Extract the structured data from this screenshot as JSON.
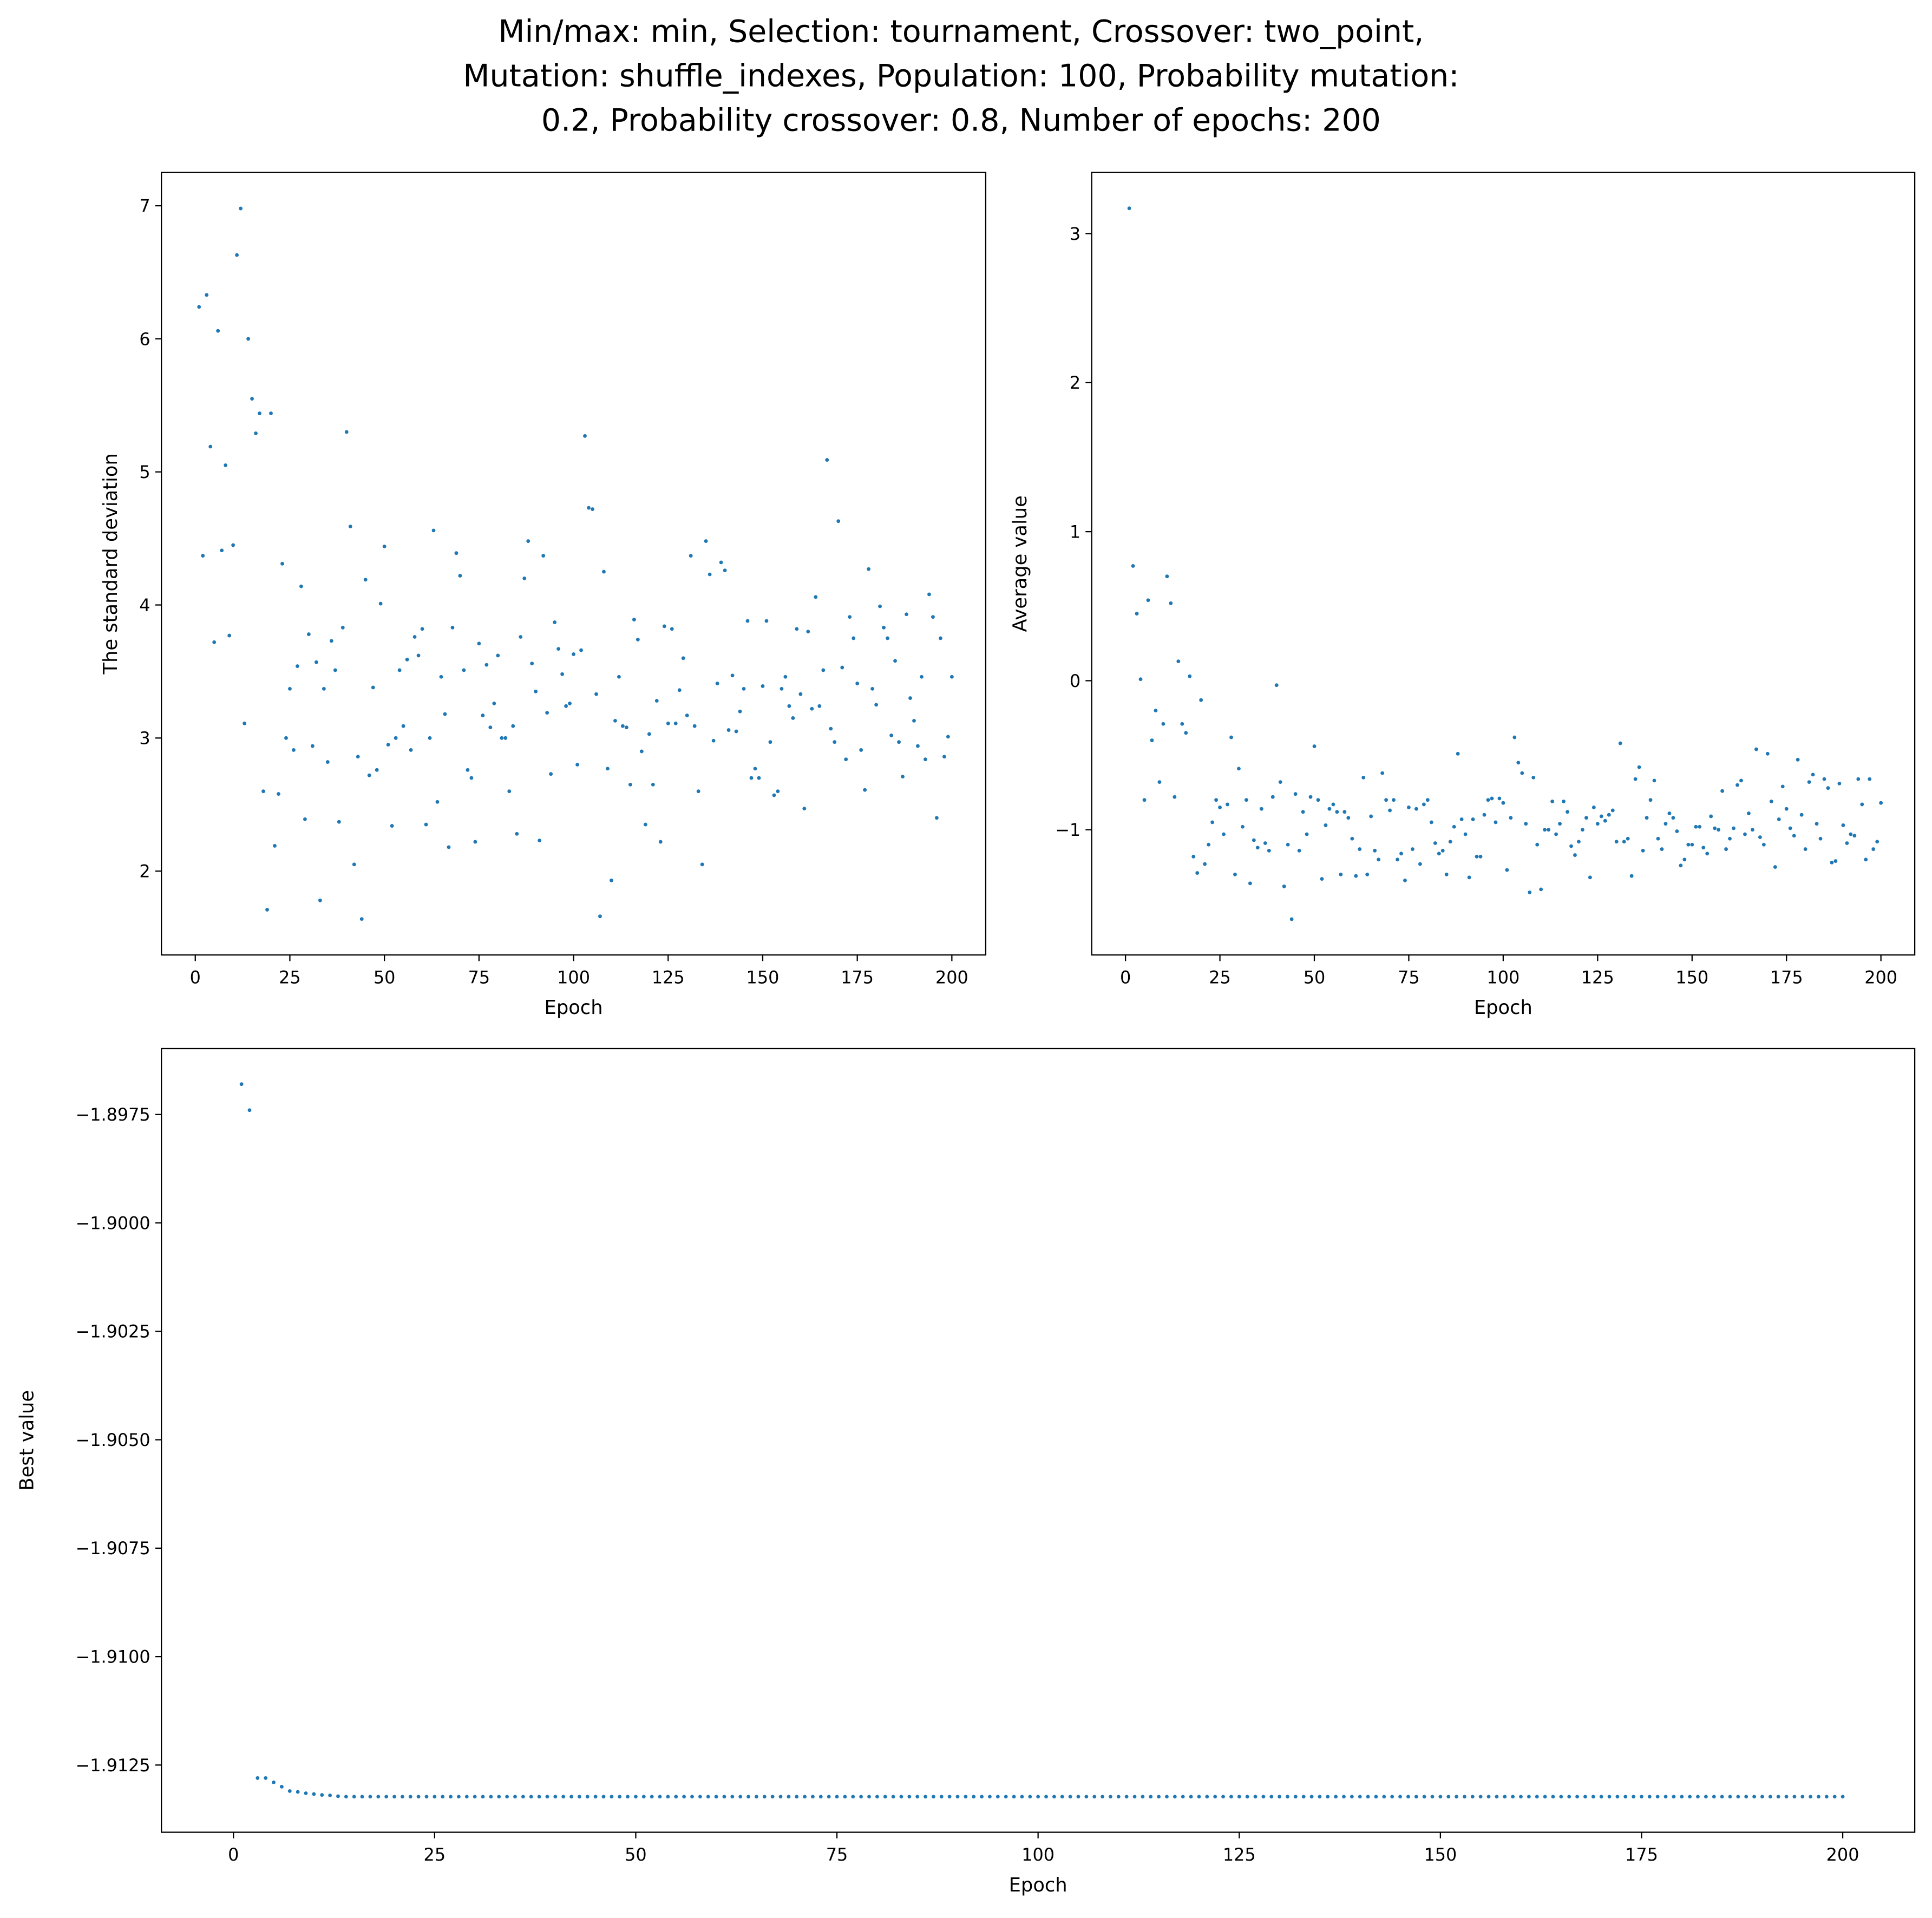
{
  "title": [
    "Min/max: min, Selection: tournament, Crossover: two_point,",
    "Mutation: shuffle_indexes, Population: 100, Probability mutation:",
    "0.2, Probability crossover: 0.8, Number of epochs: 200"
  ],
  "chart_data": [
    {
      "type": "scatter",
      "xlabel": "Epoch",
      "ylabel": "The standard deviation",
      "color": "#1f77b4",
      "xlim": [
        -8.95,
        208.95
      ],
      "ylim": [
        1.37,
        7.25
      ],
      "xticks": [
        0,
        25,
        50,
        75,
        100,
        125,
        150,
        175,
        200
      ],
      "yticks": [
        2,
        3,
        4,
        5,
        6,
        7
      ],
      "x": [
        1,
        2,
        3,
        4,
        5,
        6,
        7,
        8,
        9,
        10,
        11,
        12,
        13,
        14,
        15,
        16,
        17,
        18,
        19,
        20,
        21,
        22,
        23,
        24,
        25,
        26,
        27,
        28,
        29,
        30,
        31,
        32,
        33,
        34,
        35,
        36,
        37,
        38,
        39,
        40,
        41,
        42,
        43,
        44,
        45,
        46,
        47,
        48,
        49,
        50,
        51,
        52,
        53,
        54,
        55,
        56,
        57,
        58,
        59,
        60,
        61,
        62,
        63,
        64,
        65,
        66,
        67,
        68,
        69,
        70,
        71,
        72,
        73,
        74,
        75,
        76,
        77,
        78,
        79,
        80,
        81,
        82,
        83,
        84,
        85,
        86,
        87,
        88,
        89,
        90,
        91,
        92,
        93,
        94,
        95,
        96,
        97,
        98,
        99,
        100,
        101,
        102,
        103,
        104,
        105,
        106,
        107,
        108,
        109,
        110,
        111,
        112,
        113,
        114,
        115,
        116,
        117,
        118,
        119,
        120,
        121,
        122,
        123,
        124,
        125,
        126,
        127,
        128,
        129,
        130,
        131,
        132,
        133,
        134,
        135,
        136,
        137,
        138,
        139,
        140,
        141,
        142,
        143,
        144,
        145,
        146,
        147,
        148,
        149,
        150,
        151,
        152,
        153,
        154,
        155,
        156,
        157,
        158,
        159,
        160,
        161,
        162,
        163,
        164,
        165,
        166,
        167,
        168,
        169,
        170,
        171,
        172,
        173,
        174,
        175,
        176,
        177,
        178,
        179,
        180,
        181,
        182,
        183,
        184,
        185,
        186,
        187,
        188,
        189,
        190,
        191,
        192,
        193,
        194,
        195,
        196,
        197,
        198,
        199,
        200
      ],
      "values": [
        6.24,
        4.37,
        6.33,
        5.19,
        3.72,
        6.06,
        4.41,
        5.05,
        3.77,
        4.45,
        6.63,
        6.98,
        3.11,
        6.0,
        5.55,
        5.29,
        5.44,
        2.6,
        1.71,
        5.44,
        2.19,
        2.58,
        4.31,
        3.0,
        3.37,
        2.91,
        3.54,
        4.14,
        2.39,
        3.78,
        2.94,
        3.57,
        1.78,
        3.37,
        2.82,
        3.73,
        3.51,
        2.37,
        3.83,
        5.3,
        4.59,
        2.05,
        2.86,
        1.64,
        4.19,
        2.72,
        3.38,
        2.76,
        4.01,
        4.44,
        2.95,
        2.34,
        3.0,
        3.51,
        3.09,
        3.59,
        2.91,
        3.76,
        3.62,
        3.82,
        2.35,
        3.0,
        4.56,
        2.52,
        3.46,
        3.18,
        2.18,
        3.83,
        4.39,
        4.22,
        3.51,
        2.76,
        2.7,
        2.22,
        3.71,
        3.17,
        3.55,
        3.08,
        3.26,
        3.62,
        3.0,
        3.0,
        2.6,
        3.09,
        2.28,
        3.76,
        4.2,
        4.48,
        3.56,
        3.35,
        2.23,
        4.37,
        3.19,
        2.73,
        3.87,
        3.67,
        3.48,
        3.24,
        3.26,
        3.63,
        2.8,
        3.66,
        5.27,
        4.73,
        4.72,
        3.33,
        1.66,
        4.25,
        2.77,
        1.93,
        3.13,
        3.46,
        3.09,
        3.08,
        2.65,
        3.89,
        3.74,
        2.9,
        2.35,
        3.03,
        2.65,
        3.28,
        2.22,
        3.84,
        3.11,
        3.82,
        3.11,
        3.36,
        3.6,
        3.17,
        4.37,
        3.09,
        2.6,
        2.05,
        4.48,
        4.23,
        2.98,
        3.41,
        4.32,
        4.26,
        3.06,
        3.47,
        3.05,
        3.2,
        3.37,
        3.88,
        2.7,
        2.77,
        2.7,
        3.39,
        3.88,
        2.97,
        2.57,
        2.6,
        3.37,
        3.46,
        3.24,
        3.15,
        3.82,
        3.33,
        2.47,
        3.8,
        3.22,
        4.06,
        3.24,
        3.51,
        5.09,
        3.07,
        2.97,
        4.63,
        3.53,
        2.84,
        3.91,
        3.75,
        3.41,
        2.91,
        2.61,
        4.27,
        3.37,
        3.25,
        3.99,
        3.83,
        3.75,
        3.02,
        3.58,
        2.97,
        2.71,
        3.93,
        3.3,
        3.13,
        2.94,
        3.46,
        2.84,
        4.08,
        3.91,
        2.4,
        3.75,
        2.86,
        3.01,
        3.46
      ]
    },
    {
      "type": "scatter",
      "xlabel": "Epoch",
      "ylabel": "Average value",
      "color": "#1f77b4",
      "xlim": [
        -8.95,
        208.95
      ],
      "ylim": [
        -1.84,
        3.41
      ],
      "xticks": [
        0,
        25,
        50,
        75,
        100,
        125,
        150,
        175,
        200
      ],
      "yticks": [
        {
          "value": -1,
          "label": "−1"
        },
        0,
        1,
        2,
        3
      ],
      "x": [
        1,
        2,
        3,
        4,
        5,
        6,
        7,
        8,
        9,
        10,
        11,
        12,
        13,
        14,
        15,
        16,
        17,
        18,
        19,
        20,
        21,
        22,
        23,
        24,
        25,
        26,
        27,
        28,
        29,
        30,
        31,
        32,
        33,
        34,
        35,
        36,
        37,
        38,
        39,
        40,
        41,
        42,
        43,
        44,
        45,
        46,
        47,
        48,
        49,
        50,
        51,
        52,
        53,
        54,
        55,
        56,
        57,
        58,
        59,
        60,
        61,
        62,
        63,
        64,
        65,
        66,
        67,
        68,
        69,
        70,
        71,
        72,
        73,
        74,
        75,
        76,
        77,
        78,
        79,
        80,
        81,
        82,
        83,
        84,
        85,
        86,
        87,
        88,
        89,
        90,
        91,
        92,
        93,
        94,
        95,
        96,
        97,
        98,
        99,
        100,
        101,
        102,
        103,
        104,
        105,
        106,
        107,
        108,
        109,
        110,
        111,
        112,
        113,
        114,
        115,
        116,
        117,
        118,
        119,
        120,
        121,
        122,
        123,
        124,
        125,
        126,
        127,
        128,
        129,
        130,
        131,
        132,
        133,
        134,
        135,
        136,
        137,
        138,
        139,
        140,
        141,
        142,
        143,
        144,
        145,
        146,
        147,
        148,
        149,
        150,
        151,
        152,
        153,
        154,
        155,
        156,
        157,
        158,
        159,
        160,
        161,
        162,
        163,
        164,
        165,
        166,
        167,
        168,
        169,
        170,
        171,
        172,
        173,
        174,
        175,
        176,
        177,
        178,
        179,
        180,
        181,
        182,
        183,
        184,
        185,
        186,
        187,
        188,
        189,
        190,
        191,
        192,
        193,
        194,
        195,
        196,
        197,
        198,
        199,
        200
      ],
      "values": [
        3.17,
        0.77,
        0.45,
        0.01,
        -0.8,
        0.54,
        -0.4,
        -0.2,
        -0.68,
        -0.29,
        0.7,
        0.52,
        -0.78,
        0.13,
        -0.29,
        -0.35,
        0.03,
        -1.18,
        -1.29,
        -0.13,
        -1.23,
        -1.1,
        -0.95,
        -0.8,
        -0.85,
        -1.03,
        -0.83,
        -0.38,
        -1.3,
        -0.59,
        -0.98,
        -0.8,
        -1.36,
        -1.07,
        -1.12,
        -0.86,
        -1.09,
        -1.14,
        -0.78,
        -0.03,
        -0.68,
        -1.38,
        -1.1,
        -1.6,
        -0.76,
        -1.14,
        -0.88,
        -1.03,
        -0.78,
        -0.44,
        -0.8,
        -1.33,
        -0.97,
        -0.86,
        -0.83,
        -0.88,
        -1.3,
        -0.88,
        -0.92,
        -1.06,
        -1.31,
        -1.13,
        -0.65,
        -1.3,
        -0.91,
        -1.14,
        -1.2,
        -0.62,
        -0.8,
        -0.87,
        -0.8,
        -1.2,
        -1.16,
        -1.34,
        -0.85,
        -1.13,
        -0.86,
        -1.23,
        -0.83,
        -0.8,
        -0.95,
        -1.09,
        -1.16,
        -1.14,
        -1.3,
        -1.08,
        -0.98,
        -0.49,
        -0.93,
        -1.03,
        -1.32,
        -0.93,
        -1.18,
        -1.18,
        -0.9,
        -0.8,
        -0.79,
        -0.95,
        -0.79,
        -0.82,
        -1.27,
        -0.92,
        -0.38,
        -0.55,
        -0.62,
        -0.96,
        -1.42,
        -0.65,
        -1.1,
        -1.4,
        -1.0,
        -1.0,
        -0.81,
        -1.03,
        -0.96,
        -0.81,
        -0.88,
        -1.11,
        -1.17,
        -1.08,
        -1.0,
        -0.92,
        -1.32,
        -0.85,
        -0.96,
        -0.91,
        -0.94,
        -0.9,
        -0.87,
        -1.08,
        -0.42,
        -1.08,
        -1.06,
        -1.31,
        -0.66,
        -0.58,
        -1.14,
        -0.92,
        -0.8,
        -0.67,
        -1.06,
        -1.13,
        -0.96,
        -0.89,
        -0.92,
        -1.01,
        -1.24,
        -1.2,
        -1.1,
        -1.1,
        -0.98,
        -0.98,
        -1.12,
        -1.16,
        -0.91,
        -0.99,
        -1.0,
        -0.74,
        -1.13,
        -1.06,
        -0.99,
        -0.7,
        -0.67,
        -1.03,
        -0.89,
        -1.0,
        -0.46,
        -1.05,
        -1.1,
        -0.49,
        -0.81,
        -1.25,
        -0.93,
        -0.71,
        -0.86,
        -0.99,
        -1.04,
        -0.53,
        -0.9,
        -1.13,
        -0.68,
        -0.63,
        -0.96,
        -1.06,
        -0.66,
        -0.72,
        -1.22,
        -1.21,
        -0.69,
        -0.97,
        -1.09,
        -1.03,
        -1.04,
        -0.66,
        -0.83,
        -1.2,
        -0.66,
        -1.13,
        -1.08,
        -0.82
      ]
    },
    {
      "type": "scatter",
      "xlabel": "Epoch",
      "ylabel": "Best value",
      "color": "#1f77b4",
      "xlim": [
        -8.95,
        208.95
      ],
      "ylim": [
        -1.91405,
        -1.89598
      ],
      "xticks": [
        0,
        25,
        50,
        75,
        100,
        125,
        150,
        175,
        200
      ],
      "yticks": [
        {
          "value": -1.9125,
          "label": "−1.9125"
        },
        {
          "value": -1.91,
          "label": "−1.9100"
        },
        {
          "value": -1.9075,
          "label": "−1.9075"
        },
        {
          "value": -1.905,
          "label": "−1.9050"
        },
        {
          "value": -1.9025,
          "label": "−1.9025"
        },
        {
          "value": -1.9,
          "label": "−1.9000"
        },
        {
          "value": -1.8975,
          "label": "−1.8975"
        }
      ],
      "x": [
        1,
        2,
        3,
        4,
        5,
        6,
        7,
        8,
        9,
        10,
        11,
        12,
        13,
        14,
        15,
        16,
        17,
        18,
        19,
        20,
        21,
        22,
        23,
        24,
        25,
        26,
        27,
        28,
        29,
        30,
        31,
        32,
        33,
        34,
        35,
        36,
        37,
        38,
        39,
        40,
        41,
        42,
        43,
        44,
        45,
        46,
        47,
        48,
        49,
        50,
        51,
        52,
        53,
        54,
        55,
        56,
        57,
        58,
        59,
        60,
        61,
        62,
        63,
        64,
        65,
        66,
        67,
        68,
        69,
        70,
        71,
        72,
        73,
        74,
        75,
        76,
        77,
        78,
        79,
        80,
        81,
        82,
        83,
        84,
        85,
        86,
        87,
        88,
        89,
        90,
        91,
        92,
        93,
        94,
        95,
        96,
        97,
        98,
        99,
        100,
        101,
        102,
        103,
        104,
        105,
        106,
        107,
        108,
        109,
        110,
        111,
        112,
        113,
        114,
        115,
        116,
        117,
        118,
        119,
        120,
        121,
        122,
        123,
        124,
        125,
        126,
        127,
        128,
        129,
        130,
        131,
        132,
        133,
        134,
        135,
        136,
        137,
        138,
        139,
        140,
        141,
        142,
        143,
        144,
        145,
        146,
        147,
        148,
        149,
        150,
        151,
        152,
        153,
        154,
        155,
        156,
        157,
        158,
        159,
        160,
        161,
        162,
        163,
        164,
        165,
        166,
        167,
        168,
        169,
        170,
        171,
        172,
        173,
        174,
        175,
        176,
        177,
        178,
        179,
        180,
        181,
        182,
        183,
        184,
        185,
        186,
        187,
        188,
        189,
        190,
        191,
        192,
        193,
        194,
        195,
        196,
        197,
        198,
        199,
        200
      ],
      "values": [
        -1.8968,
        -1.8974,
        -1.9128,
        -1.9128,
        -1.9129,
        -1.913,
        -1.9131,
        -1.91312,
        -1.91315,
        -1.91317,
        -1.91319,
        -1.9132,
        -1.91322,
        -1.91323,
        -1.91323,
        -1.91323,
        -1.91323,
        -1.91323,
        -1.91323,
        -1.91323,
        -1.91323,
        -1.91323,
        -1.91323,
        -1.91323,
        -1.91323,
        -1.91323,
        -1.91323,
        -1.91323,
        -1.91323,
        -1.91323,
        -1.91323,
        -1.91323,
        -1.91323,
        -1.91323,
        -1.91323,
        -1.91323,
        -1.91323,
        -1.91323,
        -1.91323,
        -1.91323,
        -1.91323,
        -1.91323,
        -1.91323,
        -1.91323,
        -1.91323,
        -1.91323,
        -1.91323,
        -1.91323,
        -1.91323,
        -1.91323,
        -1.91323,
        -1.91323,
        -1.91323,
        -1.91323,
        -1.91323,
        -1.91323,
        -1.91323,
        -1.91323,
        -1.91323,
        -1.91323,
        -1.91323,
        -1.91323,
        -1.91323,
        -1.91323,
        -1.91323,
        -1.91323,
        -1.91323,
        -1.91323,
        -1.91323,
        -1.91323,
        -1.91323,
        -1.91323,
        -1.91323,
        -1.91323,
        -1.91323,
        -1.91323,
        -1.91323,
        -1.91323,
        -1.91323,
        -1.91323,
        -1.91323,
        -1.91323,
        -1.91323,
        -1.91323,
        -1.91323,
        -1.91323,
        -1.91323,
        -1.91323,
        -1.91323,
        -1.91323,
        -1.91323,
        -1.91323,
        -1.91323,
        -1.91323,
        -1.91323,
        -1.91323,
        -1.91323,
        -1.91323,
        -1.91323,
        -1.91323,
        -1.91323,
        -1.91323,
        -1.91323,
        -1.91323,
        -1.91323,
        -1.91323,
        -1.91323,
        -1.91323,
        -1.91323,
        -1.91323,
        -1.91323,
        -1.91323,
        -1.91323,
        -1.91323,
        -1.91323,
        -1.91323,
        -1.91323,
        -1.91323,
        -1.91323,
        -1.91323,
        -1.91323,
        -1.91323,
        -1.91323,
        -1.91323,
        -1.91323,
        -1.91323,
        -1.91323,
        -1.91323,
        -1.91323,
        -1.91323,
        -1.91323,
        -1.91323,
        -1.91323,
        -1.91323,
        -1.91323,
        -1.91323,
        -1.91323,
        -1.91323,
        -1.91323,
        -1.91323,
        -1.91323,
        -1.91323,
        -1.91323,
        -1.91323,
        -1.91323,
        -1.91323,
        -1.91323,
        -1.91323,
        -1.91323,
        -1.91323,
        -1.91323,
        -1.91323,
        -1.91323,
        -1.91323,
        -1.91323,
        -1.91323,
        -1.91323,
        -1.91323,
        -1.91323,
        -1.91323,
        -1.91323,
        -1.91323,
        -1.91323,
        -1.91323,
        -1.91323,
        -1.91323,
        -1.91323,
        -1.91323,
        -1.91323,
        -1.91323,
        -1.91323,
        -1.91323,
        -1.91323,
        -1.91323,
        -1.91323,
        -1.91323,
        -1.91323,
        -1.91323,
        -1.91323,
        -1.91323,
        -1.91323,
        -1.91323,
        -1.91323,
        -1.91323,
        -1.91323,
        -1.91323,
        -1.91323,
        -1.91323,
        -1.91323,
        -1.91323,
        -1.91323,
        -1.91323,
        -1.91323,
        -1.91323,
        -1.91323,
        -1.91323,
        -1.91323,
        -1.91323,
        -1.91323,
        -1.91323
      ]
    }
  ]
}
